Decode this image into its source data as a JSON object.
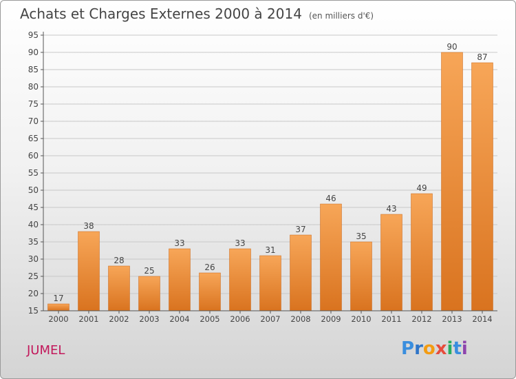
{
  "header": {
    "title": "Achats et Charges Externes 2000 à 2014",
    "unit": "(en milliers d'€)"
  },
  "footer": {
    "commune": "JUMEL",
    "brand": "Proxiti",
    "brand_letters": [
      "P",
      "r",
      "o",
      "x",
      "i",
      "t",
      "i"
    ],
    "brand_colors": [
      "#3a8ede",
      "#2f75c8",
      "#f39c12",
      "#e74c3c",
      "#27ae60",
      "#3a8ede",
      "#8e44ad"
    ]
  },
  "chart_data": {
    "type": "bar",
    "title": "Achats et Charges Externes 2000 à 2014",
    "xlabel": "",
    "ylabel": "",
    "categories": [
      "2000",
      "2001",
      "2002",
      "2003",
      "2004",
      "2005",
      "2006",
      "2007",
      "2008",
      "2009",
      "2010",
      "2011",
      "2012",
      "2013",
      "2014"
    ],
    "values": [
      17,
      38,
      28,
      25,
      33,
      26,
      33,
      31,
      37,
      46,
      35,
      43,
      49,
      90,
      87
    ],
    "ylim": [
      15,
      95
    ],
    "yticks": [
      15,
      20,
      25,
      30,
      35,
      40,
      45,
      50,
      55,
      60,
      65,
      70,
      75,
      80,
      85,
      90,
      95
    ],
    "grid": true,
    "bar_color_top": "#f7a658",
    "bar_color_bottom": "#d9731f"
  }
}
